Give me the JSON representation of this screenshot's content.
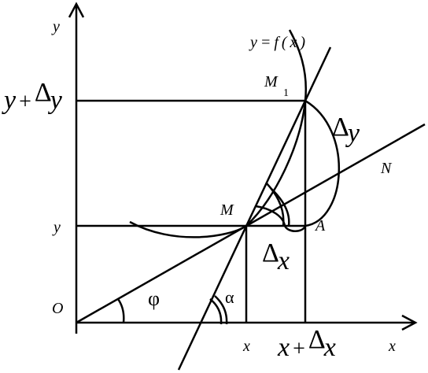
{
  "axes": {
    "y_label": "y",
    "x_label": "x",
    "origin": "O"
  },
  "curve": "y = f ( x )",
  "point_m1": {
    "label": "M",
    "subscript": "1"
  },
  "point_m": "M",
  "point_a": "A",
  "point_n": "N",
  "y_plus_dy": {
    "var": "y",
    "op": "+",
    "delta": "Δ",
    "sym": "y"
  },
  "delta_y": {
    "delta": "Δ",
    "sym": "y"
  },
  "delta_x": {
    "delta": "Δ",
    "sym": "x"
  },
  "y_tick": "y",
  "x_tick": "x",
  "x_plus_dx": {
    "var": "x",
    "op": "+",
    "delta": "Δ",
    "sym": "x"
  },
  "phi": "φ",
  "alpha": "α"
}
